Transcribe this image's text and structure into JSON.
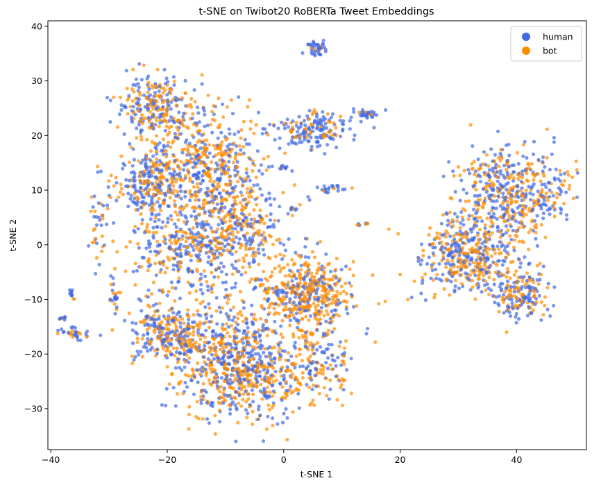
{
  "chart_data": {
    "type": "scatter",
    "title": "t-SNE on Twibot20 RoBERTa Tweet Embeddings",
    "xlabel": "t-SNE 1",
    "ylabel": "t-SNE 2",
    "xlim": [
      -40.5,
      52
    ],
    "ylim": [
      -37.5,
      41
    ],
    "xticks": [
      -40,
      -20,
      0,
      20,
      40
    ],
    "yticks": [
      -30,
      -20,
      -10,
      0,
      10,
      20,
      30,
      40
    ],
    "grid": false,
    "legend_position": "top-right",
    "point_alpha": 0.7,
    "series": [
      {
        "name": "human",
        "color": "#4169E1"
      },
      {
        "name": "bot",
        "color": "#FF8C00"
      }
    ],
    "clusters": [
      {
        "center": [
          -22,
          25
        ],
        "spread": [
          3.2,
          3.0
        ],
        "n": 260,
        "bot_fraction": 0.5
      },
      {
        "center": [
          -13,
          14
        ],
        "spread": [
          4.5,
          5.5
        ],
        "n": 520,
        "bot_fraction": 0.55
      },
      {
        "center": [
          -23,
          11
        ],
        "spread": [
          3.0,
          3.5
        ],
        "n": 260,
        "bot_fraction": 0.4
      },
      {
        "center": [
          -8,
          3
        ],
        "spread": [
          5.0,
          3.5
        ],
        "n": 300,
        "bot_fraction": 0.55
      },
      {
        "center": [
          -18,
          0
        ],
        "spread": [
          4.0,
          3.0
        ],
        "n": 160,
        "bot_fraction": 0.45
      },
      {
        "center": [
          4,
          -9
        ],
        "spread": [
          4.0,
          3.2
        ],
        "n": 450,
        "bot_fraction": 0.65
      },
      {
        "center": [
          -8,
          -22
        ],
        "spread": [
          5.5,
          5.0
        ],
        "n": 760,
        "bot_fraction": 0.5
      },
      {
        "center": [
          -20,
          -16
        ],
        "spread": [
          3.5,
          2.8
        ],
        "n": 260,
        "bot_fraction": 0.45
      },
      {
        "center": [
          6,
          -22
        ],
        "spread": [
          2.8,
          3.5
        ],
        "n": 150,
        "bot_fraction": 0.5
      },
      {
        "center": [
          -14,
          -6
        ],
        "spread": [
          6.0,
          4.0
        ],
        "n": 160,
        "bot_fraction": 0.5
      },
      {
        "center": [
          5,
          21
        ],
        "spread": [
          3.5,
          1.6
        ],
        "n": 170,
        "bot_fraction": 0.3
      },
      {
        "center": [
          39,
          10
        ],
        "spread": [
          4.5,
          4.2
        ],
        "n": 460,
        "bot_fraction": 0.5
      },
      {
        "center": [
          32,
          -2
        ],
        "spread": [
          4.2,
          3.6
        ],
        "n": 440,
        "bot_fraction": 0.45
      },
      {
        "center": [
          41,
          -9
        ],
        "spread": [
          2.4,
          2.4
        ],
        "n": 170,
        "bot_fraction": 0.45
      },
      {
        "center": [
          5.8,
          36
        ],
        "spread": [
          0.7,
          0.8
        ],
        "n": 40,
        "bot_fraction": 0.1
      },
      {
        "center": [
          14,
          24
        ],
        "spread": [
          1.2,
          0.5
        ],
        "n": 30,
        "bot_fraction": 0.3
      },
      {
        "center": [
          8,
          10.3
        ],
        "spread": [
          1.4,
          0.4
        ],
        "n": 22,
        "bot_fraction": 0.1
      },
      {
        "center": [
          0,
          14.3
        ],
        "spread": [
          0.7,
          0.2
        ],
        "n": 10,
        "bot_fraction": 0.2
      },
      {
        "center": [
          -36,
          -16.5
        ],
        "spread": [
          1.2,
          0.6
        ],
        "n": 35,
        "bot_fraction": 0.3
      },
      {
        "center": [
          -36.5,
          -9
        ],
        "spread": [
          0.3,
          0.4
        ],
        "n": 10,
        "bot_fraction": 0.2
      },
      {
        "center": [
          -29,
          -9
        ],
        "spread": [
          0.4,
          1.4
        ],
        "n": 22,
        "bot_fraction": 0.4
      },
      {
        "center": [
          -38,
          -13.5
        ],
        "spread": [
          0.3,
          0.15
        ],
        "n": 8,
        "bot_fraction": 0.2
      },
      {
        "center": [
          2,
          6.6
        ],
        "spread": [
          1.0,
          0.15
        ],
        "n": 8,
        "bot_fraction": 0.3
      },
      {
        "center": [
          13.3,
          3.8
        ],
        "spread": [
          0.5,
          0.15
        ],
        "n": 8,
        "bot_fraction": 0.5
      },
      {
        "center": [
          -32,
          5
        ],
        "spread": [
          1.3,
          4.5
        ],
        "n": 40,
        "bot_fraction": 0.6
      },
      {
        "center": [
          48,
          8
        ],
        "spread": [
          2.0,
          3.0
        ],
        "n": 20,
        "bot_fraction": 0.5
      }
    ]
  }
}
